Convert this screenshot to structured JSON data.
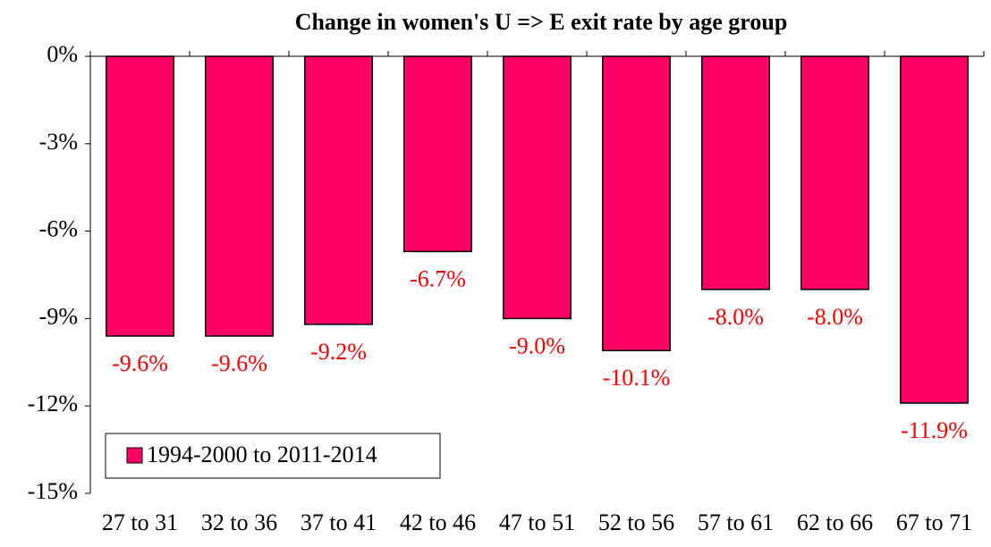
{
  "chart_data": {
    "type": "bar",
    "title": "Change in women's U => E exit rate by age group",
    "categories": [
      "27 to 31",
      "32 to 36",
      "37 to 41",
      "42 to 46",
      "47 to 51",
      "52 to 56",
      "57 to 61",
      "62 to 66",
      "67 to 71"
    ],
    "series": [
      {
        "name": "1994-2000 to 2011-2014",
        "color": "#ff0066",
        "values": [
          -9.6,
          -9.6,
          -9.2,
          -6.7,
          -9.0,
          -10.1,
          -8.0,
          -8.0,
          -11.9
        ],
        "value_labels": [
          "-9.6%",
          "-9.6%",
          "-9.2%",
          "-6.7%",
          "-9.0%",
          "-10.1%",
          "-8.0%",
          "-8.0%",
          "-11.9%"
        ]
      }
    ],
    "ylim": [
      -15,
      0
    ],
    "yticks": [
      {
        "value": 0,
        "label": "0%"
      },
      {
        "value": -3,
        "label": "-3%"
      },
      {
        "value": -6,
        "label": "-6%"
      },
      {
        "value": -9,
        "label": "-9%"
      },
      {
        "value": -12,
        "label": "-12%"
      },
      {
        "value": -15,
        "label": "-15%"
      }
    ],
    "grid": false,
    "legend": "lower-left"
  }
}
